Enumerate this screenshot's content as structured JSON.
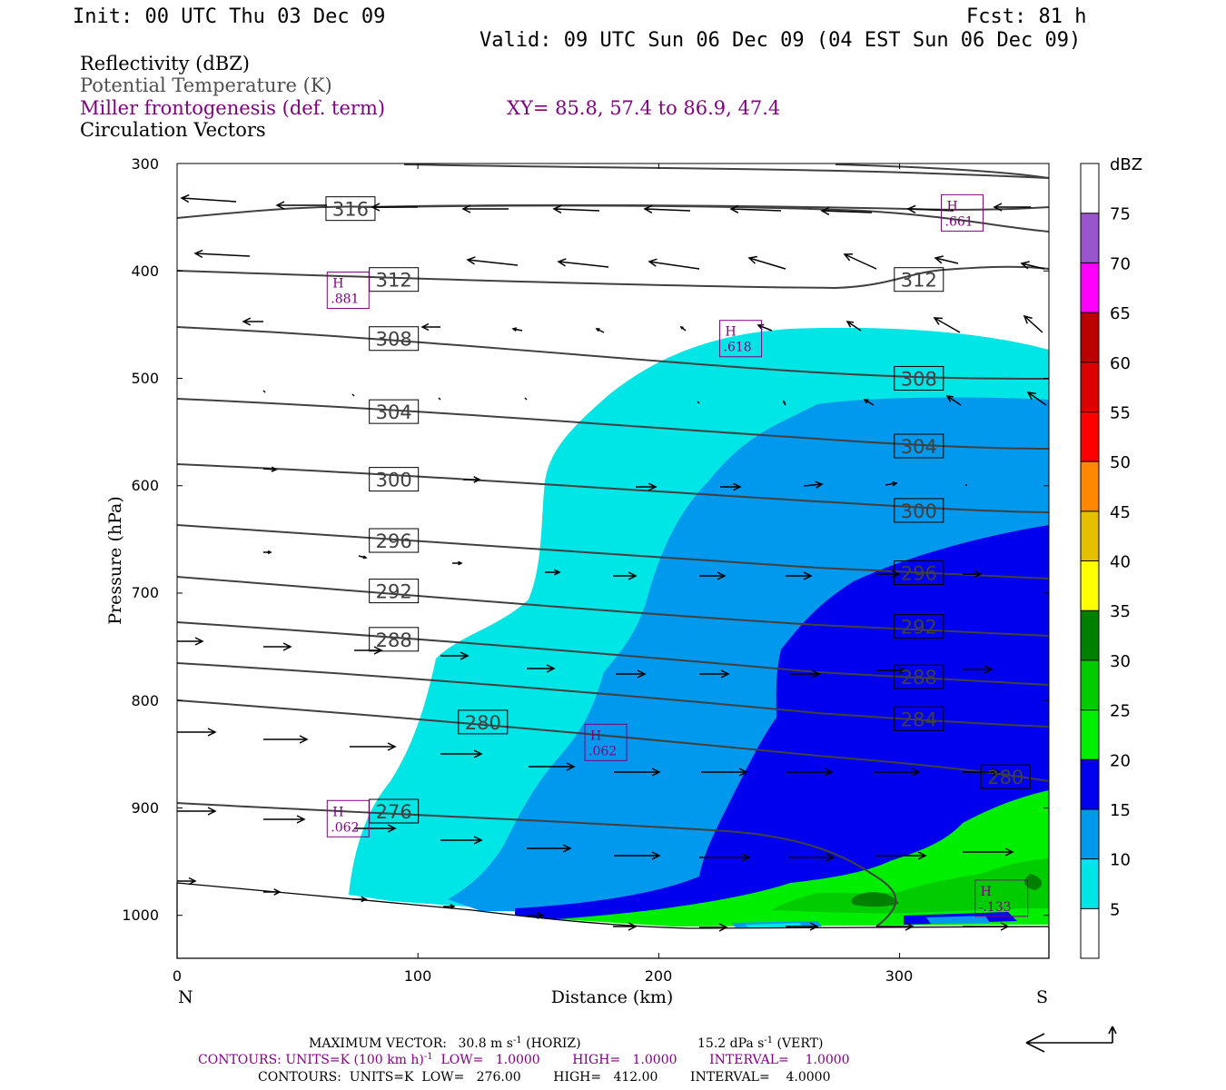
{
  "header": {
    "init": "Init: 00 UTC Thu 03 Dec 09",
    "fcst": "Fcst:   81 h",
    "valid": "Valid: 09 UTC Sun 06 Dec 09 (04 EST Sun 06 Dec 09)",
    "field1": "Reflectivity (dBZ)",
    "field2": "Potential Temperature (K)",
    "field3": "Miller frontogenesis (def. term)",
    "xy": "XY=  85.8, 57.4 to  86.9, 47.4",
    "field4": "Circulation Vectors"
  },
  "colors": {
    "theta": "#404040",
    "frontogenesis": "#800080",
    "refl": [
      "#ffffff",
      "#00e5e5",
      "#0099ee",
      "#0000ee",
      "#00ee00",
      "#00cc00",
      "#008000",
      "#ffff00",
      "#e5c000",
      "#ff8800",
      "#ff0000",
      "#dd0000",
      "#bb0000",
      "#ff00ff",
      "#9955cc",
      "#ffffff"
    ]
  },
  "chart_data": {
    "type": "contour",
    "xlabel": "Distance (km)",
    "ylabel": "Pressure (hPa)",
    "x_ticks": [
      "0",
      "100",
      "200",
      "300"
    ],
    "y_ticks": [
      "300",
      "400",
      "500",
      "600",
      "700",
      "800",
      "900",
      "1000"
    ],
    "xlim": [
      0,
      362
    ],
    "ylim": [
      300,
      1040
    ],
    "left_end": "N",
    "right_end": "S",
    "colorbar": {
      "title": "dBZ",
      "levels": [
        "5",
        "10",
        "15",
        "20",
        "25",
        "30",
        "35",
        "40",
        "45",
        "50",
        "55",
        "60",
        "65",
        "70",
        "75"
      ]
    },
    "theta_labels": [
      {
        "text": "316",
        "x": 72,
        "p": 342
      },
      {
        "text": "312",
        "x": 90,
        "p": 408
      },
      {
        "text": "312",
        "x": 308,
        "p": 408
      },
      {
        "text": "308",
        "x": 90,
        "p": 463
      },
      {
        "text": "308",
        "x": 308,
        "p": 500
      },
      {
        "text": "304",
        "x": 90,
        "p": 531
      },
      {
        "text": "304",
        "x": 308,
        "p": 563
      },
      {
        "text": "300",
        "x": 90,
        "p": 594
      },
      {
        "text": "300",
        "x": 308,
        "p": 623
      },
      {
        "text": "296",
        "x": 90,
        "p": 651
      },
      {
        "text": "296",
        "x": 308,
        "p": 681
      },
      {
        "text": "292",
        "x": 90,
        "p": 698
      },
      {
        "text": "292",
        "x": 308,
        "p": 731
      },
      {
        "text": "288",
        "x": 90,
        "p": 743
      },
      {
        "text": "288",
        "x": 308,
        "p": 778
      },
      {
        "text": "284",
        "x": 308,
        "p": 817
      },
      {
        "text": "280",
        "x": 127,
        "p": 820
      },
      {
        "text": "280",
        "x": 344,
        "p": 871
      },
      {
        "text": "276",
        "x": 90,
        "p": 903
      }
    ],
    "frontogenesis_maxima": [
      {
        "mark": "H",
        "value": ".661",
        "x": 326,
        "p": 346
      },
      {
        "mark": "H",
        "value": ".881",
        "x": 71,
        "p": 418
      },
      {
        "mark": "H",
        "value": ".618",
        "x": 234,
        "p": 463
      },
      {
        "mark": "H",
        "value": ".062",
        "x": 178,
        "p": 839
      },
      {
        "mark": "H",
        "value": ".062",
        "x": 71,
        "p": 910
      },
      {
        "mark": "H",
        "value": "-.133",
        "x": 340,
        "p": 984
      }
    ]
  },
  "footer": {
    "max_vector_label": "MAXIMUM VECTOR:",
    "max_vector_horiz": "30.8 m s",
    "horiz_sup": "-1",
    "horiz_tail": " (HORIZ)",
    "max_vector_vert": "15.2 dPa s",
    "vert_sup": "-1",
    "vert_tail": " (VERT)",
    "contours1_a": "CONTOURS:  UNITS=K (100 km h)",
    "contours1_sup": "-1",
    "contours1_b": "  LOW=   1.0000        HIGH=   1.0000        INTERVAL=    1.0000",
    "contours2": "CONTOURS:  UNITS=K  LOW=   276.00        HIGH=   412.00        INTERVAL=    4.0000"
  }
}
